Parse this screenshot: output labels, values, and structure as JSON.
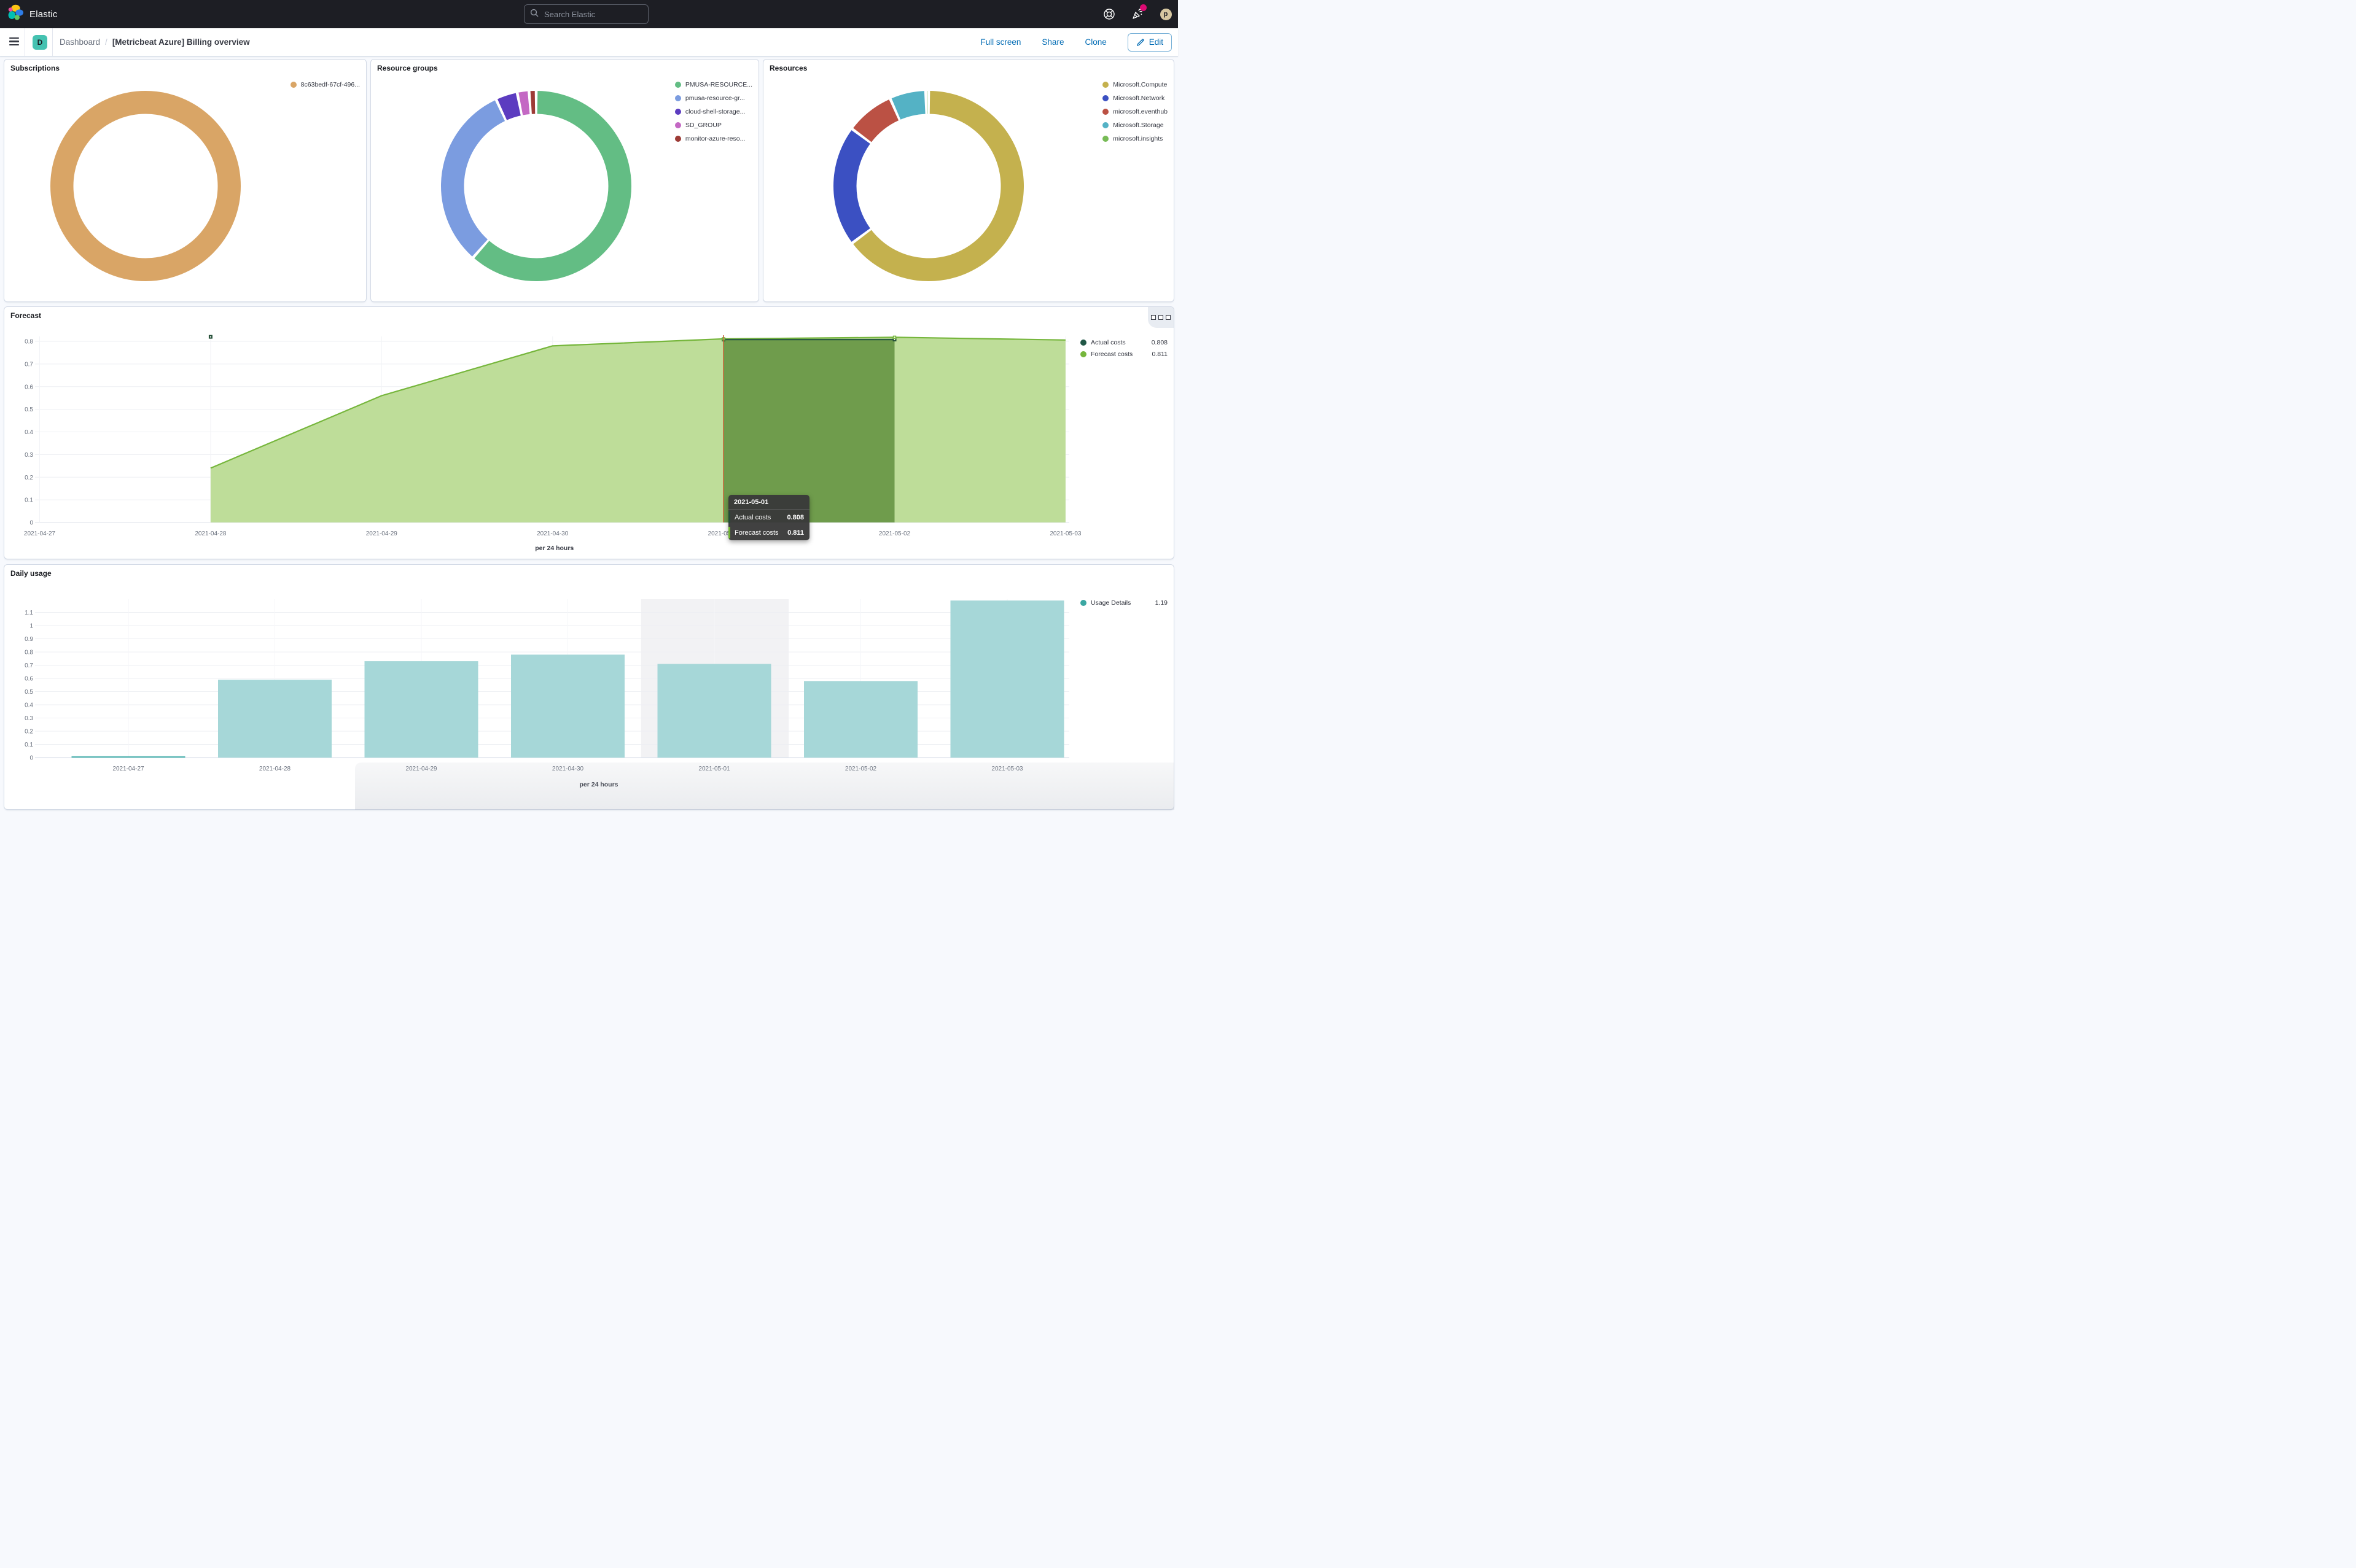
{
  "ui": {
    "header": {
      "brand": "Elastic",
      "search_placeholder": "Search Elastic",
      "avatar_initial": "p",
      "notification_color": "#dd0a73"
    },
    "toolbar": {
      "space_initial": "D",
      "space_color": "#45c2b1",
      "breadcrumb_root": "Dashboard",
      "breadcrumb_current": "[Metricbeat Azure] Billing overview",
      "actions": [
        "Full screen",
        "Share",
        "Clone"
      ],
      "edit_label": "Edit",
      "link_color": "#006bb4"
    }
  },
  "tooltip": {
    "date": "2021-05-01",
    "rows": [
      {
        "label": "Actual costs",
        "value": "0.808",
        "color": "#234b38"
      },
      {
        "label": "Forecast costs",
        "value": "0.811",
        "color": "#6fb52f"
      }
    ]
  },
  "chart_data": [
    {
      "type": "pie",
      "title": "Subscriptions",
      "donut": true,
      "legend_position": "right",
      "slices": [
        {
          "label": "8c63bedf-67cf-496...",
          "value": 100,
          "color": "#d9a566"
        }
      ]
    },
    {
      "type": "pie",
      "title": "Resource groups",
      "donut": true,
      "legend_position": "right",
      "slices": [
        {
          "label": "PMUSA-RESOURCE...",
          "value": 61.5,
          "color": "#63bd84"
        },
        {
          "label": "pmusa-resource-gr...",
          "value": 31.6,
          "color": "#7b9ce0"
        },
        {
          "label": "cloud-shell-storage...",
          "value": 3.7,
          "color": "#5c3cc0"
        },
        {
          "label": "SD_GROUP",
          "value": 2.0,
          "color": "#c468c4"
        },
        {
          "label": "monitor-azure-reso...",
          "value": 1.2,
          "color": "#9d3b36"
        }
      ]
    },
    {
      "type": "pie",
      "title": "Resources",
      "donut": true,
      "legend_position": "right",
      "slices": [
        {
          "label": "Microsoft.Compute",
          "value": 64.8,
          "color": "#c4b14e"
        },
        {
          "label": "Microsoft.Network",
          "value": 20.4,
          "color": "#3b50c2"
        },
        {
          "label": "microsoft.eventhub",
          "value": 8.2,
          "color": "#bb5144"
        },
        {
          "label": "Microsoft.Storage",
          "value": 6.1,
          "color": "#54b2c5"
        },
        {
          "label": "microsoft.insights",
          "value": 0.5,
          "color": "#77bb56"
        }
      ]
    },
    {
      "type": "area",
      "title": "Forecast",
      "xlabel": "per 24 hours",
      "ylim": [
        0,
        0.8
      ],
      "ytick": 0.1,
      "grid": true,
      "legend_position": "right",
      "x": [
        "2021-04-27",
        "2021-04-28",
        "2021-04-29",
        "2021-04-30",
        "2021-05-01",
        "2021-05-02",
        "2021-05-03"
      ],
      "crosshair_x": "2021-05-01",
      "series": [
        {
          "name": "Actual costs",
          "color": "#215746",
          "legend_value": "0.808",
          "points": [
            {
              "x": "2021-04-28",
              "y": 0.82
            },
            {
              "x": "2021-05-01",
              "y": 0.808
            },
            {
              "x": "2021-05-02",
              "y": 0.808
            }
          ],
          "band_between": [
            "2021-05-01",
            "2021-05-02"
          ],
          "band_fill": "#6f9c4c"
        },
        {
          "name": "Forecast costs",
          "color": "#76b63c",
          "fill": "#bedd99",
          "legend_value": "0.811",
          "values": [
            null,
            0.24,
            0.56,
            0.78,
            0.811,
            0.818,
            0.806
          ],
          "marker_x": [
            "2021-05-01",
            "2021-05-02"
          ]
        }
      ]
    },
    {
      "type": "bar",
      "title": "Daily usage",
      "xlabel": "per 24 hours",
      "ylim": [
        0,
        1.1
      ],
      "ytick": 0.1,
      "grid": true,
      "legend_position": "right",
      "x": [
        "2021-04-27",
        "2021-04-28",
        "2021-04-29",
        "2021-04-30",
        "2021-05-01",
        "2021-05-02",
        "2021-05-03"
      ],
      "highlight_x": "2021-05-01",
      "highlight_color": "#f2f2f4",
      "series": [
        {
          "name": "Usage Details",
          "color": "#a6d7d8",
          "accent_color": "#4fb3af",
          "legend_dot_color": "#3ba7a2",
          "legend_value": "1.19",
          "values": [
            0.01,
            0.59,
            0.73,
            0.78,
            0.71,
            0.58,
            1.19
          ]
        }
      ]
    }
  ]
}
